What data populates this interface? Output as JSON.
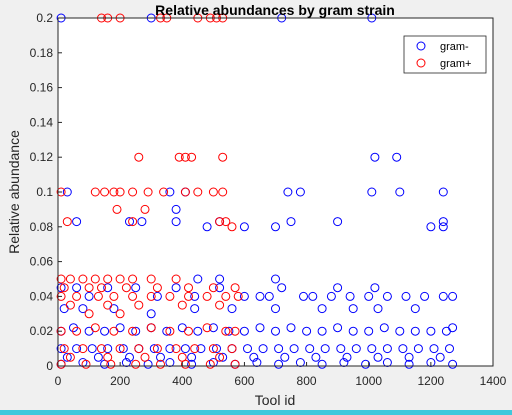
{
  "chart_data": {
    "type": "scatter",
    "title": "Relative abundances by gram strain",
    "xlabel": "Tool id",
    "ylabel": "Relative abundance",
    "xlim": [
      0,
      1400
    ],
    "ylim": [
      0,
      0.2
    ],
    "xticks": [
      "0",
      "200",
      "400",
      "600",
      "800",
      "1000",
      "1200",
      "1400"
    ],
    "yticks": [
      "0",
      "0.02",
      "0.04",
      "0.06",
      "0.08",
      "0.1",
      "0.12",
      "0.14",
      "0.16",
      "0.18",
      "0.2"
    ],
    "grid": false,
    "legend": {
      "position": "top-right",
      "entries": [
        "gram-",
        "gram+"
      ]
    },
    "series": [
      {
        "name": "gram-",
        "color": "#0000ff",
        "marker": "circle-open",
        "points": [
          [
            10,
            0.2
          ],
          [
            300,
            0.2
          ],
          [
            720,
            0.2
          ],
          [
            1010,
            0.2
          ],
          [
            1240,
            0.1
          ],
          [
            1020,
            0.12
          ],
          [
            1090,
            0.12
          ],
          [
            1010,
            0.1
          ],
          [
            1100,
            0.1
          ],
          [
            740,
            0.1
          ],
          [
            780,
            0.1
          ],
          [
            360,
            0.1
          ],
          [
            30,
            0.1
          ],
          [
            410,
            0.1
          ],
          [
            380,
            0.09
          ],
          [
            230,
            0.083
          ],
          [
            270,
            0.083
          ],
          [
            380,
            0.083
          ],
          [
            480,
            0.08
          ],
          [
            520,
            0.083
          ],
          [
            600,
            0.08
          ],
          [
            700,
            0.08
          ],
          [
            750,
            0.083
          ],
          [
            900,
            0.083
          ],
          [
            1200,
            0.08
          ],
          [
            1240,
            0.083
          ],
          [
            60,
            0.083
          ],
          [
            450,
            0.05
          ],
          [
            520,
            0.05
          ],
          [
            700,
            0.05
          ],
          [
            1240,
            0.08
          ],
          [
            10,
            0.045
          ],
          [
            60,
            0.045
          ],
          [
            100,
            0.04
          ],
          [
            160,
            0.045
          ],
          [
            250,
            0.045
          ],
          [
            320,
            0.04
          ],
          [
            380,
            0.045
          ],
          [
            440,
            0.04
          ],
          [
            520,
            0.045
          ],
          [
            600,
            0.04
          ],
          [
            650,
            0.04
          ],
          [
            680,
            0.04
          ],
          [
            720,
            0.045
          ],
          [
            790,
            0.04
          ],
          [
            820,
            0.04
          ],
          [
            880,
            0.04
          ],
          [
            940,
            0.04
          ],
          [
            1000,
            0.04
          ],
          [
            1060,
            0.04
          ],
          [
            1120,
            0.04
          ],
          [
            1180,
            0.04
          ],
          [
            1240,
            0.04
          ],
          [
            1270,
            0.04
          ],
          [
            900,
            0.045
          ],
          [
            1020,
            0.045
          ],
          [
            20,
            0.033
          ],
          [
            80,
            0.033
          ],
          [
            180,
            0.033
          ],
          [
            300,
            0.03
          ],
          [
            440,
            0.033
          ],
          [
            560,
            0.033
          ],
          [
            700,
            0.033
          ],
          [
            850,
            0.033
          ],
          [
            950,
            0.033
          ],
          [
            1030,
            0.033
          ],
          [
            1150,
            0.033
          ],
          [
            10,
            0.02
          ],
          [
            50,
            0.022
          ],
          [
            100,
            0.02
          ],
          [
            150,
            0.02
          ],
          [
            200,
            0.022
          ],
          [
            250,
            0.02
          ],
          [
            300,
            0.022
          ],
          [
            350,
            0.02
          ],
          [
            400,
            0.022
          ],
          [
            450,
            0.02
          ],
          [
            500,
            0.022
          ],
          [
            550,
            0.02
          ],
          [
            600,
            0.02
          ],
          [
            650,
            0.022
          ],
          [
            700,
            0.02
          ],
          [
            750,
            0.022
          ],
          [
            800,
            0.02
          ],
          [
            850,
            0.02
          ],
          [
            900,
            0.022
          ],
          [
            950,
            0.02
          ],
          [
            1000,
            0.02
          ],
          [
            1050,
            0.022
          ],
          [
            1100,
            0.02
          ],
          [
            1150,
            0.02
          ],
          [
            1200,
            0.02
          ],
          [
            1250,
            0.02
          ],
          [
            1270,
            0.022
          ],
          [
            10,
            0.01
          ],
          [
            60,
            0.01
          ],
          [
            110,
            0.01
          ],
          [
            160,
            0.01
          ],
          [
            210,
            0.01
          ],
          [
            260,
            0.01
          ],
          [
            310,
            0.01
          ],
          [
            360,
            0.01
          ],
          [
            410,
            0.01
          ],
          [
            460,
            0.01
          ],
          [
            510,
            0.01
          ],
          [
            560,
            0.01
          ],
          [
            610,
            0.01
          ],
          [
            660,
            0.01
          ],
          [
            710,
            0.01
          ],
          [
            760,
            0.01
          ],
          [
            810,
            0.01
          ],
          [
            860,
            0.01
          ],
          [
            910,
            0.01
          ],
          [
            960,
            0.01
          ],
          [
            1010,
            0.01
          ],
          [
            1060,
            0.01
          ],
          [
            1110,
            0.01
          ],
          [
            1160,
            0.01
          ],
          [
            1210,
            0.01
          ],
          [
            1260,
            0.01
          ],
          [
            30,
            0.005
          ],
          [
            130,
            0.005
          ],
          [
            230,
            0.005
          ],
          [
            330,
            0.005
          ],
          [
            430,
            0.005
          ],
          [
            530,
            0.005
          ],
          [
            630,
            0.005
          ],
          [
            730,
            0.005
          ],
          [
            830,
            0.005
          ],
          [
            930,
            0.005
          ],
          [
            1030,
            0.005
          ],
          [
            1130,
            0.005
          ],
          [
            1230,
            0.005
          ],
          [
            10,
            0.001
          ],
          [
            80,
            0.002
          ],
          [
            150,
            0.001
          ],
          [
            220,
            0.002
          ],
          [
            290,
            0.001
          ],
          [
            360,
            0.002
          ],
          [
            430,
            0.001
          ],
          [
            500,
            0.002
          ],
          [
            570,
            0.001
          ],
          [
            640,
            0.002
          ],
          [
            710,
            0.001
          ],
          [
            780,
            0.002
          ],
          [
            850,
            0.001
          ],
          [
            920,
            0.002
          ],
          [
            990,
            0.001
          ],
          [
            1060,
            0.002
          ],
          [
            1130,
            0.001
          ],
          [
            1200,
            0.002
          ],
          [
            1270,
            0.001
          ]
        ]
      },
      {
        "name": "gram+",
        "color": "#ff0000",
        "marker": "circle-open",
        "points": [
          [
            140,
            0.2
          ],
          [
            160,
            0.2
          ],
          [
            200,
            0.2
          ],
          [
            330,
            0.2
          ],
          [
            350,
            0.2
          ],
          [
            450,
            0.2
          ],
          [
            490,
            0.2
          ],
          [
            510,
            0.2
          ],
          [
            530,
            0.2
          ],
          [
            260,
            0.12
          ],
          [
            390,
            0.12
          ],
          [
            410,
            0.12
          ],
          [
            430,
            0.12
          ],
          [
            530,
            0.12
          ],
          [
            10,
            0.1
          ],
          [
            120,
            0.1
          ],
          [
            150,
            0.1
          ],
          [
            180,
            0.1
          ],
          [
            200,
            0.1
          ],
          [
            240,
            0.1
          ],
          [
            290,
            0.1
          ],
          [
            340,
            0.1
          ],
          [
            410,
            0.1
          ],
          [
            450,
            0.1
          ],
          [
            500,
            0.1
          ],
          [
            530,
            0.1
          ],
          [
            30,
            0.083
          ],
          [
            190,
            0.09
          ],
          [
            240,
            0.083
          ],
          [
            280,
            0.09
          ],
          [
            520,
            0.083
          ],
          [
            540,
            0.083
          ],
          [
            560,
            0.08
          ],
          [
            10,
            0.05
          ],
          [
            40,
            0.05
          ],
          [
            80,
            0.05
          ],
          [
            120,
            0.05
          ],
          [
            160,
            0.05
          ],
          [
            200,
            0.05
          ],
          [
            240,
            0.05
          ],
          [
            300,
            0.05
          ],
          [
            380,
            0.05
          ],
          [
            20,
            0.045
          ],
          [
            100,
            0.045
          ],
          [
            140,
            0.045
          ],
          [
            220,
            0.045
          ],
          [
            320,
            0.045
          ],
          [
            420,
            0.045
          ],
          [
            500,
            0.045
          ],
          [
            570,
            0.045
          ],
          [
            10,
            0.04
          ],
          [
            60,
            0.04
          ],
          [
            130,
            0.04
          ],
          [
            180,
            0.04
          ],
          [
            240,
            0.04
          ],
          [
            300,
            0.04
          ],
          [
            360,
            0.04
          ],
          [
            420,
            0.04
          ],
          [
            480,
            0.04
          ],
          [
            540,
            0.04
          ],
          [
            580,
            0.04
          ],
          [
            40,
            0.035
          ],
          [
            160,
            0.035
          ],
          [
            260,
            0.035
          ],
          [
            400,
            0.035
          ],
          [
            520,
            0.035
          ],
          [
            200,
            0.03
          ],
          [
            100,
            0.03
          ],
          [
            10,
            0.02
          ],
          [
            60,
            0.02
          ],
          [
            120,
            0.022
          ],
          [
            180,
            0.02
          ],
          [
            240,
            0.02
          ],
          [
            300,
            0.022
          ],
          [
            360,
            0.02
          ],
          [
            420,
            0.02
          ],
          [
            480,
            0.022
          ],
          [
            540,
            0.02
          ],
          [
            570,
            0.02
          ],
          [
            20,
            0.01
          ],
          [
            80,
            0.01
          ],
          [
            140,
            0.01
          ],
          [
            200,
            0.01
          ],
          [
            260,
            0.01
          ],
          [
            320,
            0.01
          ],
          [
            380,
            0.01
          ],
          [
            440,
            0.01
          ],
          [
            500,
            0.01
          ],
          [
            560,
            0.01
          ],
          [
            40,
            0.005
          ],
          [
            160,
            0.005
          ],
          [
            280,
            0.005
          ],
          [
            400,
            0.005
          ],
          [
            520,
            0.005
          ],
          [
            10,
            0.001
          ],
          [
            90,
            0.001
          ],
          [
            170,
            0.001
          ],
          [
            250,
            0.001
          ],
          [
            330,
            0.001
          ],
          [
            410,
            0.001
          ],
          [
            490,
            0.001
          ],
          [
            570,
            0.001
          ]
        ]
      }
    ]
  }
}
